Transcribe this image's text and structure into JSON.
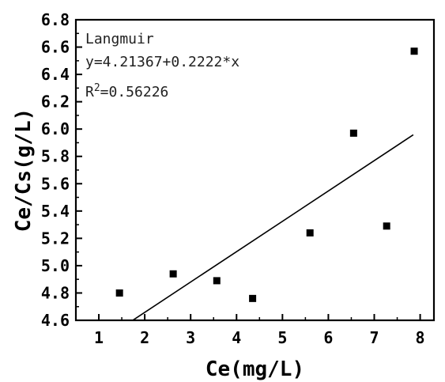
{
  "chart_data": {
    "type": "scatter",
    "xlabel": "Ce(mg/L)",
    "ylabel": "Ce/Cs(g/L)",
    "xlim": [
      0.5,
      8.3
    ],
    "ylim": [
      4.6,
      6.8
    ],
    "x_ticks": [
      1,
      2,
      3,
      4,
      5,
      6,
      7,
      8
    ],
    "y_ticks": [
      4.6,
      4.8,
      5.0,
      5.2,
      5.4,
      5.6,
      5.8,
      6.0,
      6.2,
      6.4,
      6.6,
      6.8
    ],
    "x_tick_labels": [
      "1",
      "2",
      "3",
      "4",
      "5",
      "6",
      "7",
      "8"
    ],
    "y_tick_labels": [
      "4.6",
      "4.8",
      "5.0",
      "5.2",
      "5.4",
      "5.6",
      "5.8",
      "6.0",
      "6.2",
      "6.4",
      "6.6",
      "6.8"
    ],
    "points": [
      {
        "x": 1.45,
        "y": 4.8
      },
      {
        "x": 2.62,
        "y": 4.94
      },
      {
        "x": 3.57,
        "y": 4.89
      },
      {
        "x": 4.35,
        "y": 4.76
      },
      {
        "x": 5.6,
        "y": 5.24
      },
      {
        "x": 6.55,
        "y": 5.97
      },
      {
        "x": 7.27,
        "y": 5.29
      },
      {
        "x": 7.87,
        "y": 6.57
      }
    ],
    "fit_line": {
      "intercept": 4.21367,
      "slope": 0.2222,
      "x_start": 1.75,
      "x_end": 7.85
    },
    "annotation": {
      "model": "Langmuir",
      "equation": "y=4.21367+0.2222*x",
      "r2_prefix": "R",
      "r2_sup": "2",
      "r2_value": "=0.56226"
    },
    "grid": false,
    "marker_color": "#000000",
    "line_color": "#000000"
  }
}
